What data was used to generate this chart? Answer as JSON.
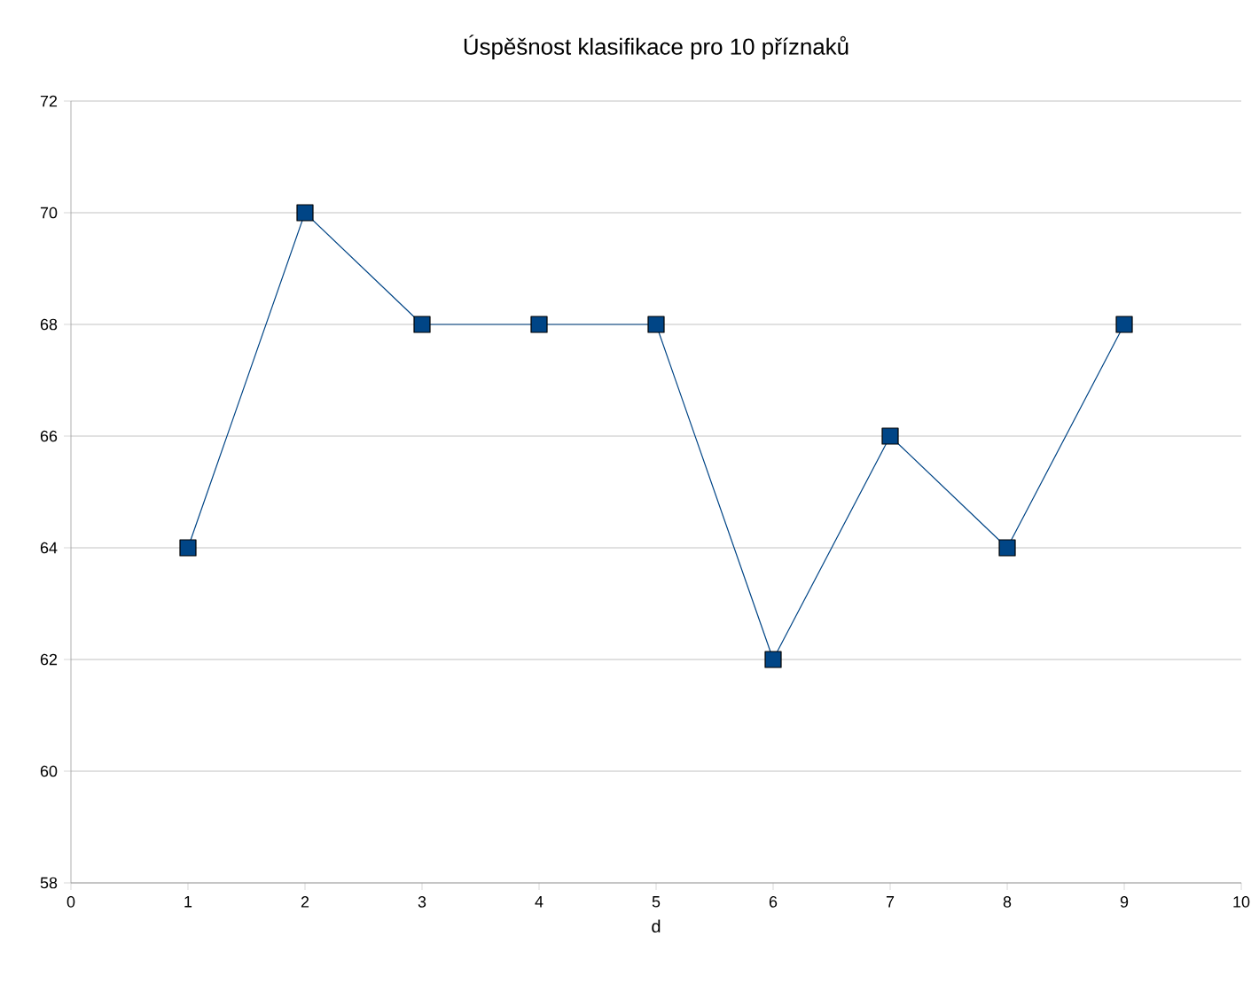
{
  "chart_data": {
    "type": "line",
    "title": "Úspěšnost klasifikace pro 10 příznaků",
    "xlabel": "d",
    "x": [
      1,
      2,
      3,
      4,
      5,
      6,
      7,
      8,
      9
    ],
    "values": [
      64,
      70,
      68,
      68,
      68,
      62,
      66,
      64,
      68
    ],
    "color": "#004586",
    "xlim": [
      0,
      10
    ],
    "xticks": [
      0,
      1,
      2,
      3,
      4,
      5,
      6,
      7,
      8,
      9,
      10
    ],
    "ylim": [
      58,
      72
    ],
    "yticks": [
      58,
      60,
      62,
      64,
      66,
      68,
      70,
      72
    ],
    "grid": "y",
    "marker": "square",
    "line_style": "solid"
  }
}
